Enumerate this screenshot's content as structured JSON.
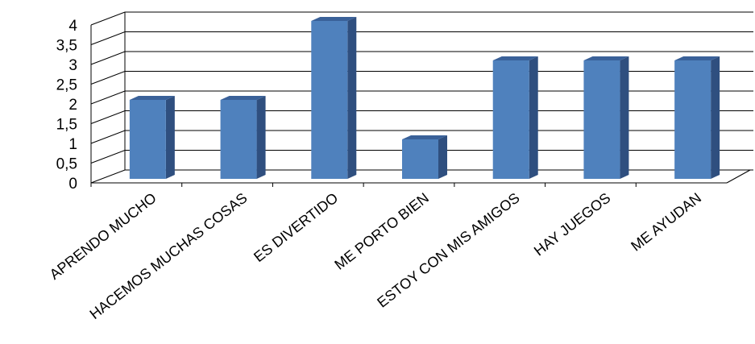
{
  "chart_data": {
    "type": "bar",
    "style": "3d-column",
    "categories": [
      "APRENDO MUCHO",
      "HACEMOS MUCHAS COSAS",
      "ES DIVERTIDO",
      "ME PORTO BIEN",
      "ESTOY CON MIS AMIGOS",
      "HAY JUEGOS",
      "ME AYUDAN"
    ],
    "values": [
      2,
      2,
      4,
      1,
      3,
      3,
      3
    ],
    "y_ticks": [
      "0",
      "0,5",
      "1",
      "1,5",
      "2",
      "2,5",
      "3",
      "3,5",
      "4"
    ],
    "ylim": [
      0,
      4
    ],
    "grid": true,
    "legend": "none",
    "colors": {
      "bar_front": "#4f81bd",
      "bar_side": "#2f4f7f",
      "bar_top": "#3a6199"
    }
  }
}
